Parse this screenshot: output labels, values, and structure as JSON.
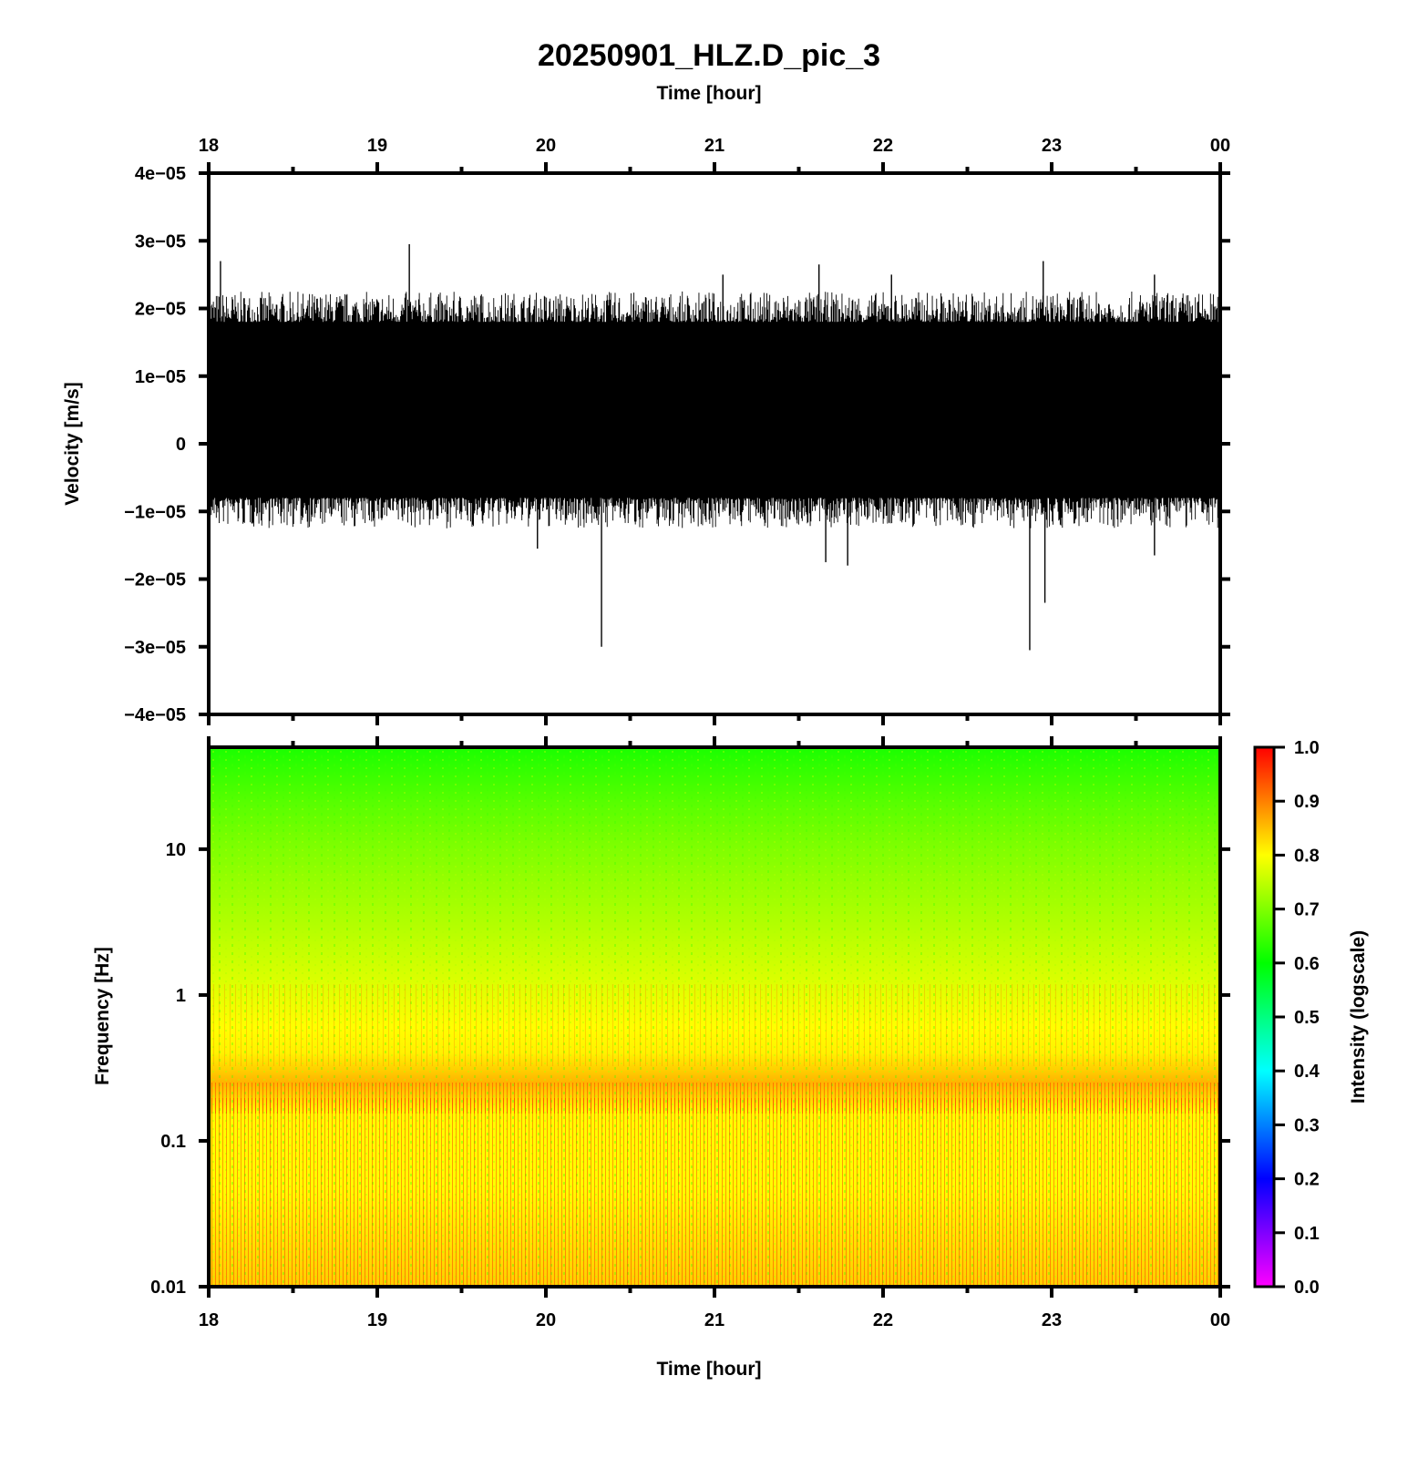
{
  "chart_data": [
    {
      "type": "line",
      "title": "20250901_HLZ.D_pic_3",
      "x_title_top": "Time [hour]",
      "ylabel": "Velocity [m/s]",
      "x_range_hours": [
        18,
        24
      ],
      "ylim": [
        -4e-05,
        4e-05
      ],
      "x_tick_labels": [
        "18",
        "19",
        "20",
        "21",
        "22",
        "23",
        "00"
      ],
      "y_ticks": [
        {
          "value": 4e-05,
          "label": "4e−05"
        },
        {
          "value": 3e-05,
          "label": "3e−05"
        },
        {
          "value": 2e-05,
          "label": "2e−05"
        },
        {
          "value": 1e-05,
          "label": "1e−05"
        },
        {
          "value": 0,
          "label": "0"
        },
        {
          "value": -1e-05,
          "label": "−1e−05"
        },
        {
          "value": -2e-05,
          "label": "−2e−05"
        },
        {
          "value": -3e-05,
          "label": "−3e−05"
        },
        {
          "value": -4e-05,
          "label": "−4e−05"
        }
      ],
      "series": [
        {
          "color": "#000000",
          "baseline_band": [
            -7e-06,
            1.7e-05
          ],
          "notable_spikes": [
            {
              "t": 18.07,
              "v": 2.7e-05
            },
            {
              "t": 19.19,
              "v": 2.95e-05
            },
            {
              "t": 20.33,
              "v": -3e-05
            },
            {
              "t": 21.62,
              "v": 2.65e-05
            },
            {
              "t": 21.66,
              "v": -1.75e-05
            },
            {
              "t": 21.79,
              "v": -1.8e-05
            },
            {
              "t": 21.05,
              "v": 2.5e-05
            },
            {
              "t": 22.05,
              "v": 2.5e-05
            },
            {
              "t": 22.87,
              "v": -3.05e-05
            },
            {
              "t": 22.95,
              "v": 2.7e-05
            },
            {
              "t": 22.96,
              "v": -2.35e-05
            },
            {
              "t": 23.61,
              "v": 2.5e-05
            },
            {
              "t": 23.61,
              "v": -1.65e-05
            },
            {
              "t": 19.95,
              "v": -1.55e-05
            }
          ]
        }
      ]
    },
    {
      "type": "heatmap",
      "xlabel": "Time [hour]",
      "ylabel": "Frequency [Hz]",
      "x_range_hours": [
        18,
        24
      ],
      "x_tick_labels": [
        "18",
        "19",
        "20",
        "21",
        "22",
        "23",
        "00"
      ],
      "y_scale": "log",
      "ylim_hz": [
        0.01,
        50
      ],
      "y_ticks": [
        {
          "value": 10,
          "label": "10"
        },
        {
          "value": 1,
          "label": "1"
        },
        {
          "value": 0.1,
          "label": "0.1"
        },
        {
          "value": 0.01,
          "label": "0.01"
        }
      ],
      "intensity_profile": [
        {
          "freq_hz": 50,
          "intensity": 0.62
        },
        {
          "freq_hz": 20,
          "intensity": 0.67
        },
        {
          "freq_hz": 10,
          "intensity": 0.7
        },
        {
          "freq_hz": 3,
          "intensity": 0.74
        },
        {
          "freq_hz": 1,
          "intensity": 0.78
        },
        {
          "freq_hz": 0.6,
          "intensity": 0.8
        },
        {
          "freq_hz": 0.4,
          "intensity": 0.81
        },
        {
          "freq_hz": 0.25,
          "intensity": 0.86
        },
        {
          "freq_hz": 0.15,
          "intensity": 0.8
        },
        {
          "freq_hz": 0.05,
          "intensity": 0.8
        },
        {
          "freq_hz": 0.01,
          "intensity": 0.84
        }
      ],
      "colorbar": {
        "label": "Intensity (logscale)",
        "range": [
          0,
          1
        ],
        "tick_labels": [
          "0.0",
          "0.1",
          "0.2",
          "0.3",
          "0.4",
          "0.5",
          "0.6",
          "0.7",
          "0.8",
          "0.9",
          "1.0"
        ],
        "colors": [
          "#ff00ff",
          "#8000ff",
          "#0000ff",
          "#0080ff",
          "#00ffff",
          "#00ff80",
          "#00ff00",
          "#80ff00",
          "#ffff00",
          "#ff8000",
          "#ff0000"
        ]
      }
    }
  ]
}
